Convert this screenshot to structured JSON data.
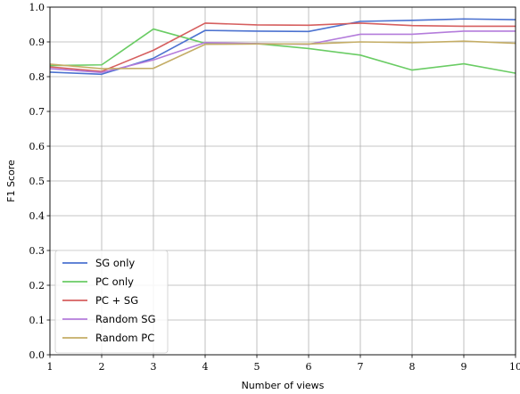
{
  "chart_data": {
    "type": "line",
    "xlabel": "Number of views",
    "ylabel": "F1 Score",
    "x": [
      1,
      2,
      3,
      4,
      5,
      6,
      7,
      8,
      9,
      10
    ],
    "x_ticks": [
      "1",
      "2",
      "3",
      "4",
      "5",
      "6",
      "7",
      "8",
      "9",
      "10"
    ],
    "xlim": [
      1,
      10
    ],
    "ylim": [
      0.0,
      1.0
    ],
    "y_ticks": [
      "0.0",
      "0.1",
      "0.2",
      "0.3",
      "0.4",
      "0.5",
      "0.6",
      "0.7",
      "0.8",
      "0.9",
      "1.0"
    ],
    "grid": true,
    "legend_position": "lower-left",
    "series": [
      {
        "name": "SG only",
        "color": "#4c72d0",
        "values": [
          0.813,
          0.807,
          0.853,
          0.933,
          0.931,
          0.93,
          0.959,
          0.962,
          0.966,
          0.964
        ]
      },
      {
        "name": "PC only",
        "color": "#6acc64",
        "values": [
          0.832,
          0.834,
          0.937,
          0.896,
          0.895,
          0.881,
          0.862,
          0.819,
          0.837,
          0.81
        ]
      },
      {
        "name": "PC + SG",
        "color": "#d65f5f",
        "values": [
          0.828,
          0.815,
          0.876,
          0.954,
          0.949,
          0.948,
          0.954,
          0.947,
          0.945,
          0.945
        ]
      },
      {
        "name": "Random SG",
        "color": "#b47cdb",
        "values": [
          0.823,
          0.812,
          0.848,
          0.898,
          0.895,
          0.893,
          0.922,
          0.922,
          0.931,
          0.931
        ]
      },
      {
        "name": "Random PC",
        "color": "#c4ad66",
        "values": [
          0.836,
          0.823,
          0.824,
          0.893,
          0.894,
          0.894,
          0.9,
          0.898,
          0.902,
          0.896
        ]
      }
    ]
  }
}
